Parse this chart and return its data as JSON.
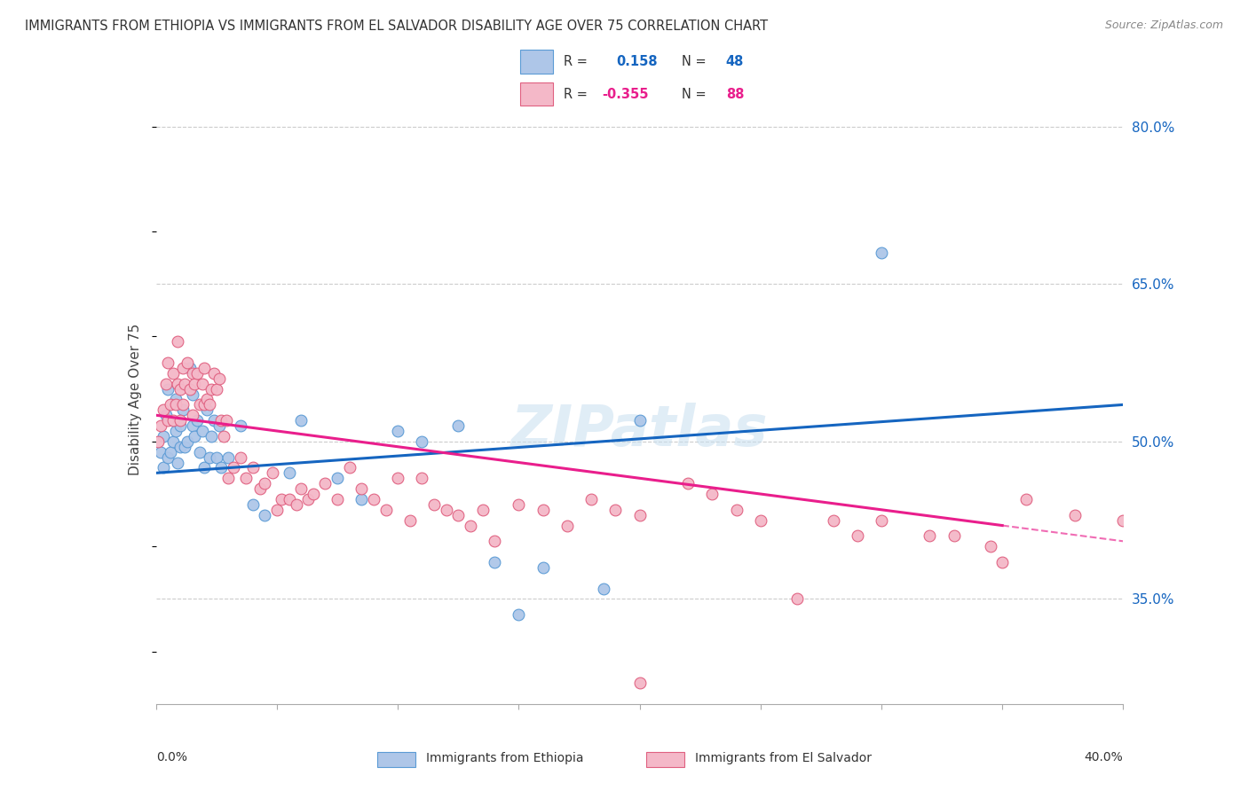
{
  "title": "IMMIGRANTS FROM ETHIOPIA VS IMMIGRANTS FROM EL SALVADOR DISABILITY AGE OVER 75 CORRELATION CHART",
  "source": "Source: ZipAtlas.com",
  "ylabel": "Disability Age Over 75",
  "xmin": 0.0,
  "xmax": 40.0,
  "ymin": 25.0,
  "ymax": 83.0,
  "right_yticks": [
    35.0,
    50.0,
    65.0,
    80.0
  ],
  "right_ytick_labels": [
    "35.0%",
    "50.0%",
    "65.0%",
    "80.0%"
  ],
  "ethiopia_color": "#aec6e8",
  "ethiopia_edge": "#5b9bd5",
  "el_salvador_color": "#f4b8c8",
  "el_salvador_edge": "#e06080",
  "ethiopia_R": 0.158,
  "ethiopia_N": 48,
  "el_salvador_R": -0.355,
  "el_salvador_N": 88,
  "ethiopia_line_color": "#1565c0",
  "el_salvador_line_color": "#e91e8c",
  "watermark": "ZIPatlas",
  "eth_line_x0": 0.0,
  "eth_line_y0": 47.0,
  "eth_line_x1": 40.0,
  "eth_line_y1": 53.5,
  "sal_line_x0": 0.0,
  "sal_line_y0": 52.5,
  "sal_line_x1": 40.0,
  "sal_line_y1": 40.5,
  "sal_solid_end": 35.0,
  "eth_x": [
    0.2,
    0.3,
    0.3,
    0.4,
    0.5,
    0.5,
    0.6,
    0.7,
    0.8,
    0.8,
    0.9,
    1.0,
    1.0,
    1.1,
    1.2,
    1.3,
    1.4,
    1.5,
    1.5,
    1.6,
    1.7,
    1.8,
    1.9,
    2.0,
    2.1,
    2.2,
    2.3,
    2.4,
    2.5,
    2.6,
    2.7,
    3.0,
    3.5,
    4.0,
    4.5,
    5.5,
    6.0,
    7.5,
    8.5,
    10.0,
    11.0,
    12.5,
    14.0,
    15.0,
    16.0,
    18.5,
    20.0,
    30.0
  ],
  "eth_y": [
    49.0,
    47.5,
    50.5,
    52.5,
    48.5,
    55.0,
    49.0,
    50.0,
    51.0,
    54.0,
    48.0,
    49.5,
    51.5,
    53.0,
    49.5,
    50.0,
    57.0,
    51.5,
    54.5,
    50.5,
    52.0,
    49.0,
    51.0,
    47.5,
    53.0,
    48.5,
    50.5,
    52.0,
    48.5,
    51.5,
    47.5,
    48.5,
    51.5,
    44.0,
    43.0,
    47.0,
    52.0,
    46.5,
    44.5,
    51.0,
    50.0,
    51.5,
    38.5,
    33.5,
    38.0,
    36.0,
    52.0,
    68.0
  ],
  "sal_x": [
    0.1,
    0.2,
    0.3,
    0.4,
    0.5,
    0.5,
    0.6,
    0.7,
    0.7,
    0.8,
    0.9,
    0.9,
    1.0,
    1.0,
    1.1,
    1.1,
    1.2,
    1.3,
    1.4,
    1.5,
    1.5,
    1.6,
    1.7,
    1.8,
    1.9,
    2.0,
    2.0,
    2.1,
    2.2,
    2.3,
    2.4,
    2.5,
    2.6,
    2.7,
    2.8,
    2.9,
    3.0,
    3.2,
    3.5,
    3.7,
    4.0,
    4.3,
    4.5,
    4.8,
    5.0,
    5.2,
    5.5,
    5.8,
    6.0,
    6.3,
    6.5,
    7.0,
    7.5,
    8.0,
    8.5,
    9.0,
    9.5,
    10.0,
    10.5,
    11.0,
    11.5,
    12.0,
    12.5,
    13.0,
    13.5,
    14.0,
    15.0,
    16.0,
    17.0,
    18.0,
    19.0,
    20.0,
    22.0,
    23.0,
    24.0,
    25.0,
    26.5,
    28.0,
    29.0,
    30.0,
    32.0,
    33.0,
    34.5,
    35.0,
    36.0,
    38.0,
    40.0,
    20.0
  ],
  "sal_y": [
    50.0,
    51.5,
    53.0,
    55.5,
    52.0,
    57.5,
    53.5,
    56.5,
    52.0,
    53.5,
    59.5,
    55.5,
    52.0,
    55.0,
    53.5,
    57.0,
    55.5,
    57.5,
    55.0,
    52.5,
    56.5,
    55.5,
    56.5,
    53.5,
    55.5,
    53.5,
    57.0,
    54.0,
    53.5,
    55.0,
    56.5,
    55.0,
    56.0,
    52.0,
    50.5,
    52.0,
    46.5,
    47.5,
    48.5,
    46.5,
    47.5,
    45.5,
    46.0,
    47.0,
    43.5,
    44.5,
    44.5,
    44.0,
    45.5,
    44.5,
    45.0,
    46.0,
    44.5,
    47.5,
    45.5,
    44.5,
    43.5,
    46.5,
    42.5,
    46.5,
    44.0,
    43.5,
    43.0,
    42.0,
    43.5,
    40.5,
    44.0,
    43.5,
    42.0,
    44.5,
    43.5,
    43.0,
    46.0,
    45.0,
    43.5,
    42.5,
    35.0,
    42.5,
    41.0,
    42.5,
    41.0,
    41.0,
    40.0,
    38.5,
    44.5,
    43.0,
    42.5,
    27.0
  ]
}
